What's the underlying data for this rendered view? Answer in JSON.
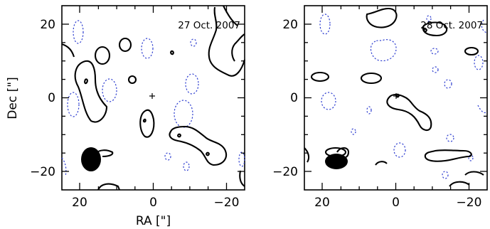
{
  "panels": [
    {
      "date_label": "27 Oct. 2007",
      "show_y_label": true,
      "show_x_label": true
    },
    {
      "date_label": "28 Oct. 2007",
      "show_y_label": false,
      "show_x_label": false
    }
  ],
  "axes": {
    "x_label": "RA [\"]",
    "y_label": "Dec [\"]",
    "x_range": [
      25,
      -25
    ],
    "y_range": [
      -25,
      25
    ],
    "x_ticks": [
      "20",
      "0",
      "−20"
    ],
    "y_ticks": [
      "20",
      "0",
      "−20"
    ]
  },
  "colors": {
    "positive_contour": "#000000",
    "negative_contour": "#2f3fd0"
  }
}
